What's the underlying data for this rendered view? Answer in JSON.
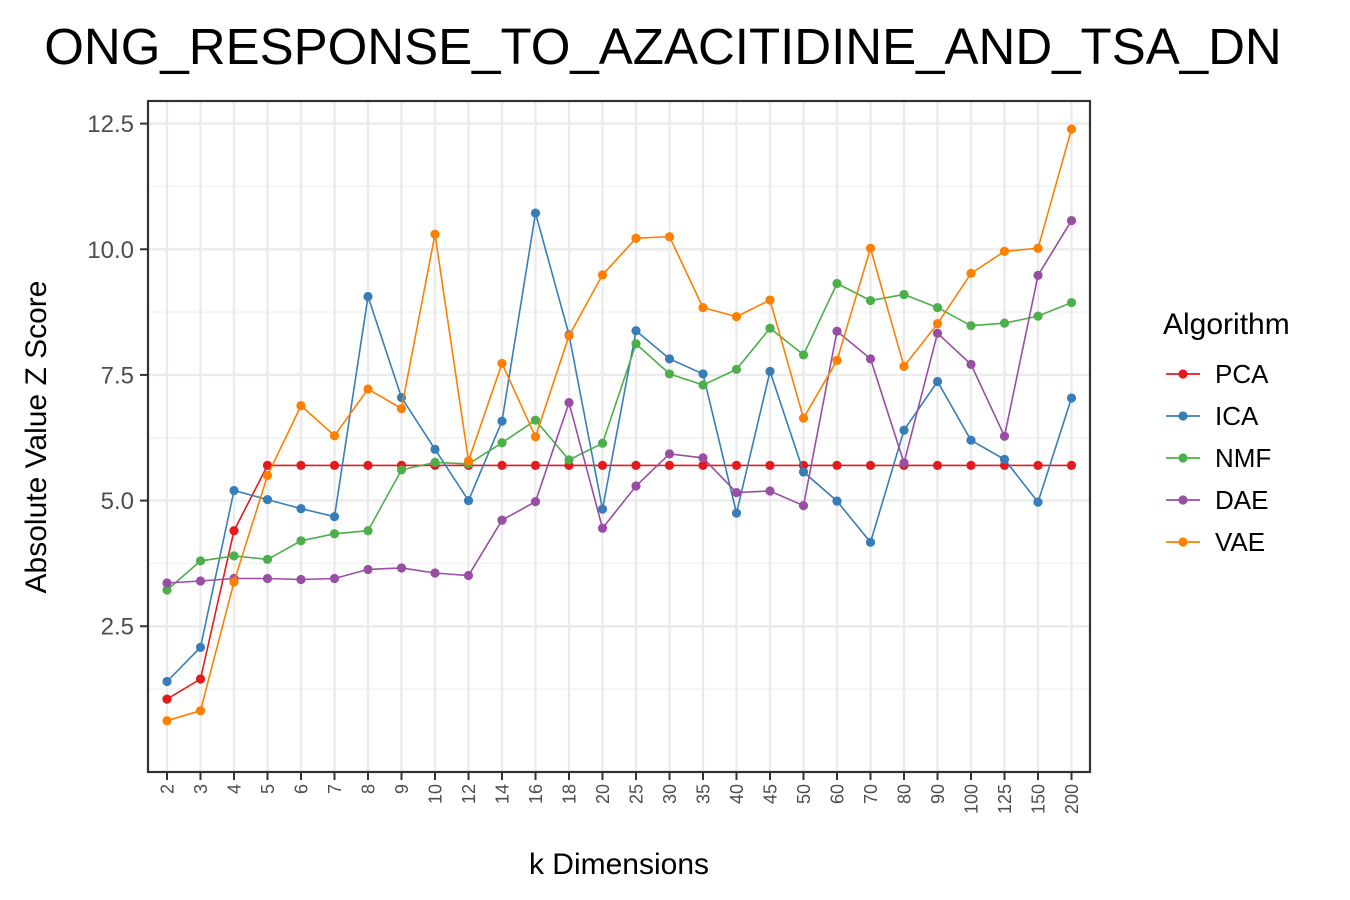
{
  "chart_data": {
    "type": "line",
    "title": "ONG_RESPONSE_TO_AZACITIDINE_AND_TSA_DN",
    "xlabel": "k Dimensions",
    "ylabel": "Absolute Value Z Score",
    "categories": [
      "2",
      "3",
      "4",
      "5",
      "6",
      "7",
      "8",
      "9",
      "10",
      "12",
      "14",
      "16",
      "18",
      "20",
      "25",
      "30",
      "35",
      "40",
      "45",
      "50",
      "60",
      "70",
      "80",
      "90",
      "100",
      "125",
      "150",
      "200"
    ],
    "ylim": [
      -0.4,
      12.95
    ],
    "yticks": [
      2.5,
      5.0,
      7.5,
      10.0,
      12.5
    ],
    "ytick_labels": [
      "2.5",
      "5.0",
      "7.5",
      "10.0",
      "12.5"
    ],
    "grid": true,
    "legend": {
      "title": "Algorithm",
      "placement": "right"
    },
    "series": [
      {
        "name": "PCA",
        "color": "#e41a1c",
        "values": [
          1.05,
          1.45,
          4.4,
          5.7,
          5.7,
          5.7,
          5.7,
          5.7,
          5.7,
          5.7,
          5.7,
          5.7,
          5.7,
          5.7,
          5.7,
          5.7,
          5.7,
          5.7,
          5.7,
          5.7,
          5.7,
          5.7,
          5.7,
          5.7,
          5.7,
          5.7,
          5.7,
          5.7
        ]
      },
      {
        "name": "ICA",
        "color": "#377eb8",
        "values": [
          1.4,
          2.08,
          5.2,
          5.02,
          4.84,
          4.68,
          9.06,
          7.05,
          6.02,
          5.0,
          6.58,
          10.72,
          8.3,
          4.83,
          8.38,
          7.82,
          7.52,
          4.75,
          7.57,
          5.57,
          4.99,
          4.17,
          6.4,
          7.37,
          6.2,
          5.82,
          4.97,
          7.04
        ]
      },
      {
        "name": "NMF",
        "color": "#4daf4a",
        "values": [
          3.22,
          3.8,
          3.9,
          3.83,
          4.2,
          4.34,
          4.4,
          5.61,
          5.76,
          5.73,
          6.15,
          6.6,
          5.81,
          6.14,
          8.12,
          7.52,
          7.3,
          7.61,
          8.43,
          7.9,
          9.32,
          8.98,
          9.1,
          8.84,
          8.48,
          8.53,
          8.67,
          8.94
        ]
      },
      {
        "name": "DAE",
        "color": "#984ea3",
        "values": [
          3.36,
          3.4,
          3.45,
          3.45,
          3.43,
          3.45,
          3.63,
          3.66,
          3.56,
          3.51,
          4.61,
          4.98,
          6.95,
          4.45,
          5.29,
          5.93,
          5.85,
          5.16,
          5.19,
          4.9,
          8.37,
          7.82,
          5.75,
          8.33,
          7.71,
          6.28,
          9.48,
          10.57
        ]
      },
      {
        "name": "VAE",
        "color": "#ff7f00",
        "values": [
          0.62,
          0.82,
          3.38,
          5.5,
          6.89,
          6.29,
          7.22,
          6.83,
          10.3,
          5.79,
          7.73,
          6.27,
          8.28,
          9.49,
          10.22,
          10.25,
          8.84,
          8.66,
          8.99,
          6.64,
          7.79,
          10.02,
          7.67,
          8.52,
          9.52,
          9.96,
          10.02,
          12.39
        ]
      }
    ]
  }
}
